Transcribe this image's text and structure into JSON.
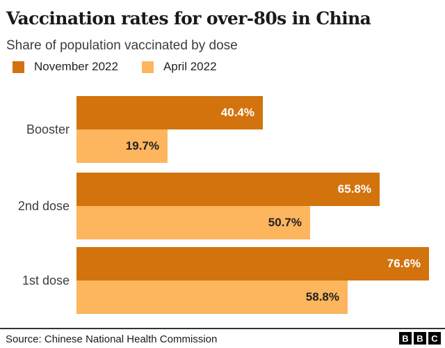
{
  "header": {
    "title": "Vaccination rates for over-80s in China",
    "subtitle": "Share of population vaccinated by dose"
  },
  "chart_data": {
    "type": "bar",
    "orientation": "horizontal",
    "title": "Vaccination rates for over-80s in China",
    "subtitle": "Share of population vaccinated by dose",
    "categories": [
      "Booster",
      "2nd dose",
      "1st dose"
    ],
    "series": [
      {
        "name": "November 2022",
        "color": "#d2730d",
        "label_color": "#ffffff",
        "values": [
          40.4,
          65.8,
          76.6
        ],
        "labels": [
          "40.4%",
          "65.8%",
          "76.6%"
        ]
      },
      {
        "name": "April 2022",
        "color": "#fdb55e",
        "label_color": "#222222",
        "values": [
          19.7,
          50.7,
          58.8
        ],
        "labels": [
          "19.7%",
          "50.7%",
          "58.8%"
        ]
      }
    ],
    "xlim": [
      0,
      80
    ],
    "grid": false,
    "legend_position": "top",
    "value_labels": "inside-end"
  },
  "footer": {
    "source": "Source: Chinese National Health Commission",
    "logo_letters": [
      "B",
      "B",
      "C"
    ]
  },
  "colors": {
    "background": "#ffffff",
    "text_primary": "#1a1a1a",
    "text_secondary": "#3d3d3d",
    "divider": "#333333",
    "series_november": "#d2730d",
    "series_april": "#fdb55e"
  }
}
